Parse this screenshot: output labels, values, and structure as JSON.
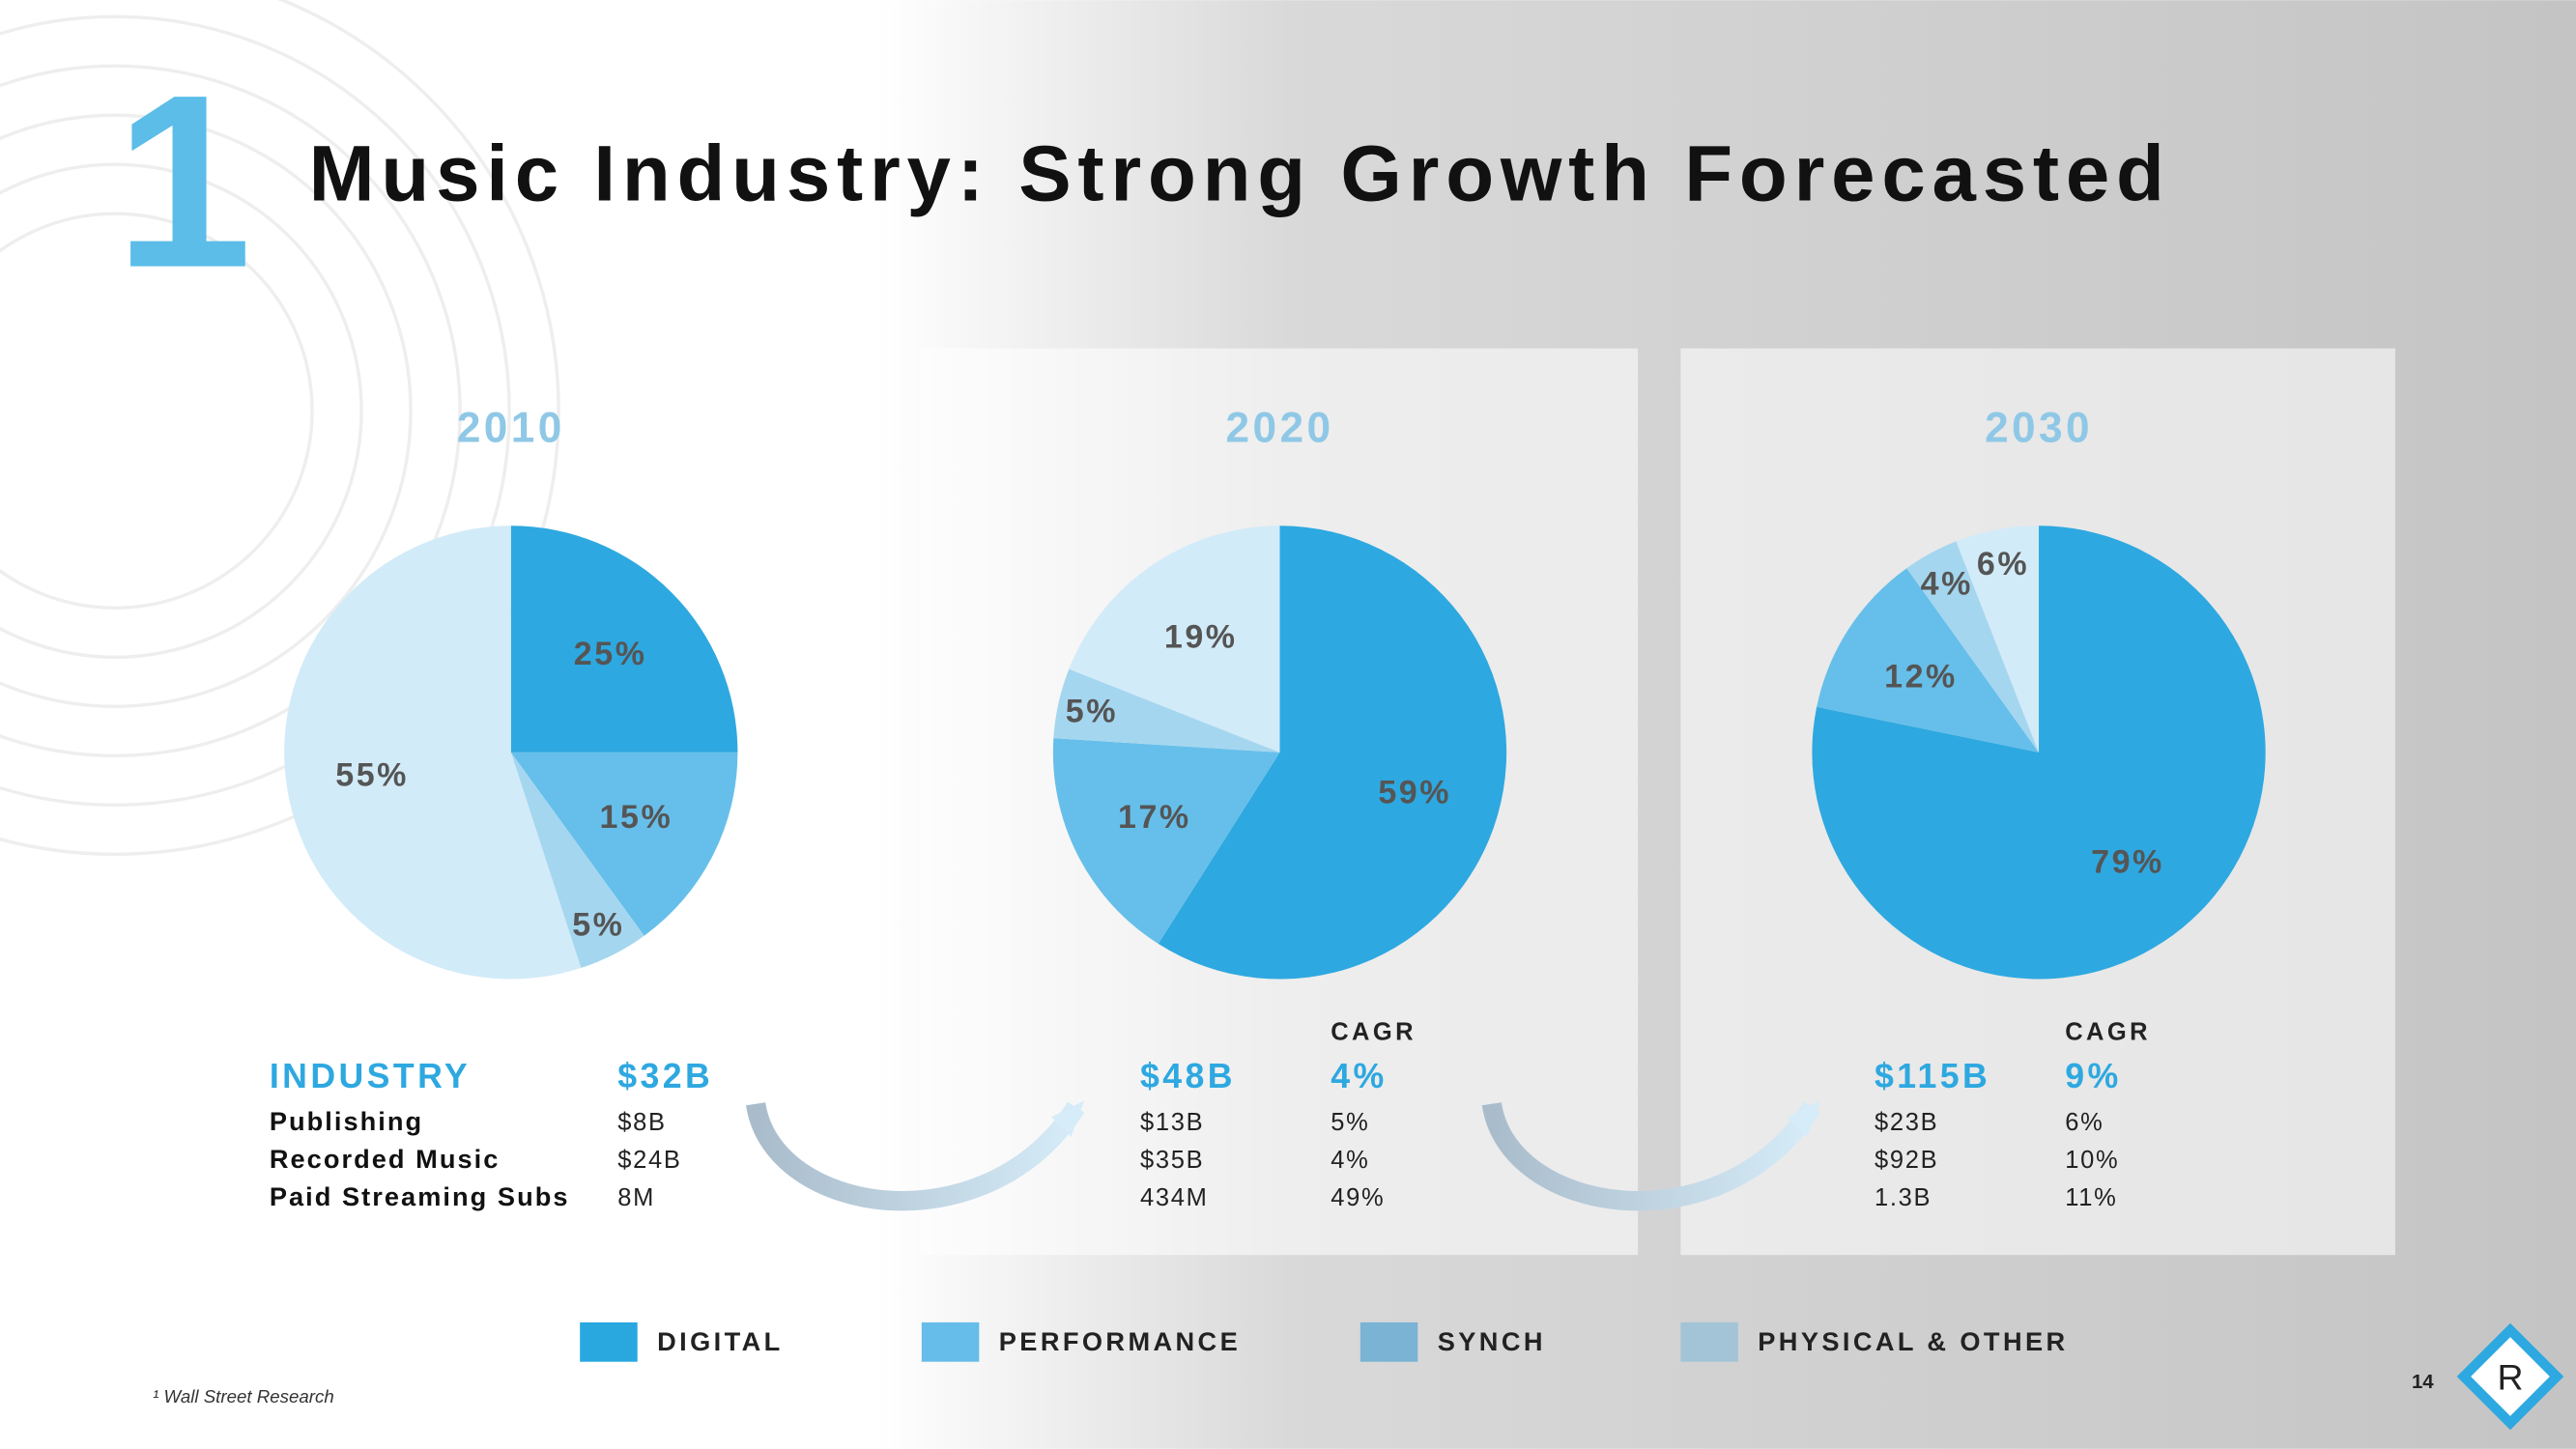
{
  "section_number": "1",
  "title": "Music Industry: Strong Growth Forecasted",
  "chart_data": [
    {
      "type": "pie",
      "title": "2010",
      "values": [
        25,
        15,
        5,
        55
      ],
      "value_labels": [
        "25%",
        "15%",
        "5%",
        "55%"
      ],
      "colors": [
        "#2ea8e0",
        "#66bfea",
        "#a5d6f0",
        "#d2ebf8"
      ]
    },
    {
      "type": "pie",
      "title": "2020",
      "values": [
        59,
        17,
        5,
        19
      ],
      "value_labels": [
        "59%",
        "17%",
        "5%",
        "19%"
      ],
      "colors": [
        "#2ea8e0",
        "#66bfea",
        "#a5d6f0",
        "#d2ebf8"
      ]
    },
    {
      "type": "pie",
      "title": "2030",
      "values": [
        79,
        12,
        4,
        6
      ],
      "value_labels": [
        "79%",
        "12%",
        "4%",
        "6%"
      ],
      "colors": [
        "#2ea8e0",
        "#66bfea",
        "#a5d6f0",
        "#d2ebf8"
      ]
    }
  ],
  "table": {
    "row_labels": [
      "INDUSTRY",
      "Publishing",
      "Recorded Music",
      "Paid Streaming Subs"
    ],
    "columns": [
      {
        "values": [
          "$32B",
          "$8B",
          "$24B",
          "8M"
        ]
      },
      {
        "values": [
          "$48B",
          "$13B",
          "$35B",
          "434M"
        ],
        "cagr_header": "CAGR",
        "cagr": [
          "4%",
          "5%",
          "4%",
          "49%"
        ]
      },
      {
        "values": [
          "$115B",
          "$23B",
          "$92B",
          "1.3B"
        ],
        "cagr_header": "CAGR",
        "cagr": [
          "9%",
          "6%",
          "10%",
          "11%"
        ]
      }
    ]
  },
  "legend": [
    {
      "label": "DIGITAL",
      "color": "#29a8e0"
    },
    {
      "label": "PERFORMANCE",
      "color": "#66bde9"
    },
    {
      "label": "SYNCH",
      "color": "#7ab3d4"
    },
    {
      "label": "PHYSICAL & OTHER",
      "color": "#a3c4d6"
    }
  ],
  "footnote": "¹ Wall Street Research",
  "page_number": "14",
  "logo": "R"
}
